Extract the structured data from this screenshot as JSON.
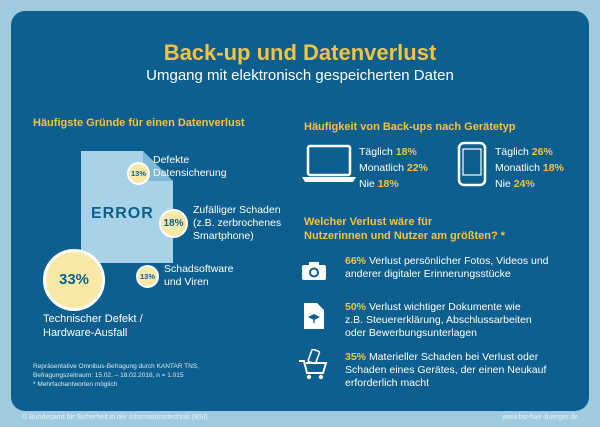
{
  "title": "Back-up und Datenverlust",
  "subtitle": "Umgang mit elektronisch gespeicherten Daten",
  "left": {
    "heading": "Häufigste Gründe für einen Datenverlust",
    "error_label": "ERROR",
    "reasons": [
      {
        "pct": "13%",
        "line1": "Defekte",
        "line2": "Datensicherung",
        "line3": ""
      },
      {
        "pct": "18%",
        "line1": "Zufälliger Schaden",
        "line2": "(z.B. zerbrochenes",
        "line3": "Smartphone)"
      },
      {
        "pct": "13%",
        "line1": "Schadsoftware",
        "line2": "und Viren",
        "line3": ""
      },
      {
        "pct": "33%",
        "line1": "Technischer Defekt /",
        "line2": "Hardware-Ausfall",
        "line3": ""
      }
    ],
    "note_lines": [
      "Repräsentative Omnibus-Befragung durch KANTAR TNS,",
      "Befragungszeitraum: 15.02. – 18.02.2018, n = 1.015",
      "* Mehrfachantworten möglich"
    ]
  },
  "right": {
    "heading1": "Häufigkeit von Back-ups nach Gerätetyp",
    "laptop": [
      {
        "label": "Täglich",
        "pct": "18%"
      },
      {
        "label": "Monatlich",
        "pct": "22%"
      },
      {
        "label": "Nie",
        "pct": "18%"
      }
    ],
    "phone": [
      {
        "label": "Täglich",
        "pct": "26%"
      },
      {
        "label": "Monatlich",
        "pct": "18%"
      },
      {
        "label": "Nie",
        "pct": "24%"
      }
    ],
    "heading2_line1": "Welcher Verlust wäre für",
    "heading2_line2": "Nutzerinnen und Nutzer am größten? *",
    "losses": [
      {
        "pct": "66%",
        "rest1": "Verlust persönlicher Fotos, Videos und",
        "line2": "anderer digitaler Erinnerungsstücke",
        "line3": ""
      },
      {
        "pct": "50%",
        "rest1": "Verlust wichtiger Dokumente wie",
        "line2": "z.B. Steuererklärung, Abschlussarbeiten",
        "line3": "oder Bewerbungsunterlagen"
      },
      {
        "pct": "35%",
        "rest1": "Materieller Schaden bei Verlust oder",
        "line2": "Schaden eines Gerätes, der einen Neukauf",
        "line3": "erforderlich macht"
      }
    ]
  },
  "footer": {
    "left": "© Bundesamt für Sicherheit in der Informationstechnik (BSI)",
    "right": "www.bsi-fuer-buerger.de"
  },
  "icons": [
    "laptop-icon",
    "smartphone-icon",
    "camera-icon",
    "document-icon",
    "shopping-cart-icon",
    "error-document-icon"
  ],
  "colors": {
    "background": "#9fcbe0",
    "card": "#0c5f8e",
    "accent": "#f5c342",
    "badge": "#f8eaa6",
    "doc": "#a8d2e8"
  }
}
